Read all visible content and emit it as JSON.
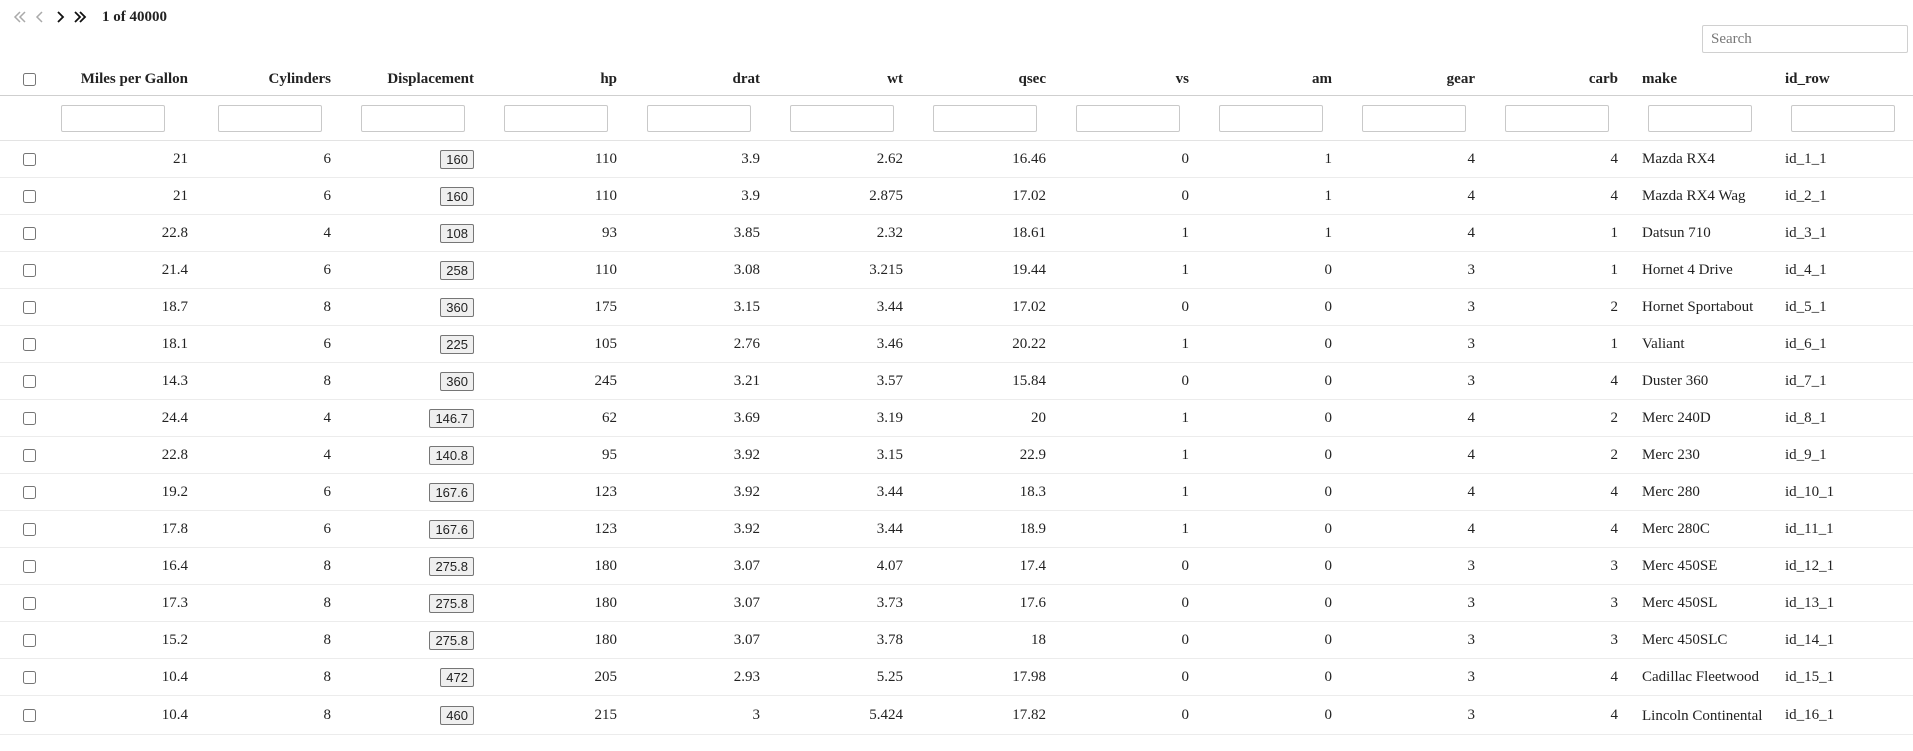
{
  "pager": {
    "info": "1 of 40000"
  },
  "search": {
    "placeholder": "Search",
    "value": ""
  },
  "columns": [
    "Miles per Gallon",
    "Cylinders",
    "Displacement",
    "hp",
    "drat",
    "wt",
    "qsec",
    "vs",
    "am",
    "gear",
    "carb",
    "make",
    "id_row"
  ],
  "rows": [
    [
      "21",
      "6",
      "160",
      "110",
      "3.9",
      "2.62",
      "16.46",
      "0",
      "1",
      "4",
      "4",
      "Mazda RX4",
      "id_1_1"
    ],
    [
      "21",
      "6",
      "160",
      "110",
      "3.9",
      "2.875",
      "17.02",
      "0",
      "1",
      "4",
      "4",
      "Mazda RX4 Wag",
      "id_2_1"
    ],
    [
      "22.8",
      "4",
      "108",
      "93",
      "3.85",
      "2.32",
      "18.61",
      "1",
      "1",
      "4",
      "1",
      "Datsun 710",
      "id_3_1"
    ],
    [
      "21.4",
      "6",
      "258",
      "110",
      "3.08",
      "3.215",
      "19.44",
      "1",
      "0",
      "3",
      "1",
      "Hornet 4 Drive",
      "id_4_1"
    ],
    [
      "18.7",
      "8",
      "360",
      "175",
      "3.15",
      "3.44",
      "17.02",
      "0",
      "0",
      "3",
      "2",
      "Hornet Sportabout",
      "id_5_1"
    ],
    [
      "18.1",
      "6",
      "225",
      "105",
      "2.76",
      "3.46",
      "20.22",
      "1",
      "0",
      "3",
      "1",
      "Valiant",
      "id_6_1"
    ],
    [
      "14.3",
      "8",
      "360",
      "245",
      "3.21",
      "3.57",
      "15.84",
      "0",
      "0",
      "3",
      "4",
      "Duster 360",
      "id_7_1"
    ],
    [
      "24.4",
      "4",
      "146.7",
      "62",
      "3.69",
      "3.19",
      "20",
      "1",
      "0",
      "4",
      "2",
      "Merc 240D",
      "id_8_1"
    ],
    [
      "22.8",
      "4",
      "140.8",
      "95",
      "3.92",
      "3.15",
      "22.9",
      "1",
      "0",
      "4",
      "2",
      "Merc 230",
      "id_9_1"
    ],
    [
      "19.2",
      "6",
      "167.6",
      "123",
      "3.92",
      "3.44",
      "18.3",
      "1",
      "0",
      "4",
      "4",
      "Merc 280",
      "id_10_1"
    ],
    [
      "17.8",
      "6",
      "167.6",
      "123",
      "3.92",
      "3.44",
      "18.9",
      "1",
      "0",
      "4",
      "4",
      "Merc 280C",
      "id_11_1"
    ],
    [
      "16.4",
      "8",
      "275.8",
      "180",
      "3.07",
      "4.07",
      "17.4",
      "0",
      "0",
      "3",
      "3",
      "Merc 450SE",
      "id_12_1"
    ],
    [
      "17.3",
      "8",
      "275.8",
      "180",
      "3.07",
      "3.73",
      "17.6",
      "0",
      "0",
      "3",
      "3",
      "Merc 450SL",
      "id_13_1"
    ],
    [
      "15.2",
      "8",
      "275.8",
      "180",
      "3.07",
      "3.78",
      "18",
      "0",
      "0",
      "3",
      "3",
      "Merc 450SLC",
      "id_14_1"
    ],
    [
      "10.4",
      "8",
      "472",
      "205",
      "2.93",
      "5.25",
      "17.98",
      "0",
      "0",
      "3",
      "4",
      "Cadillac Fleetwood",
      "id_15_1"
    ],
    [
      "10.4",
      "8",
      "460",
      "215",
      "3",
      "5.424",
      "17.82",
      "0",
      "0",
      "3",
      "4",
      "Lincoln Continental",
      "id_16_1"
    ]
  ]
}
